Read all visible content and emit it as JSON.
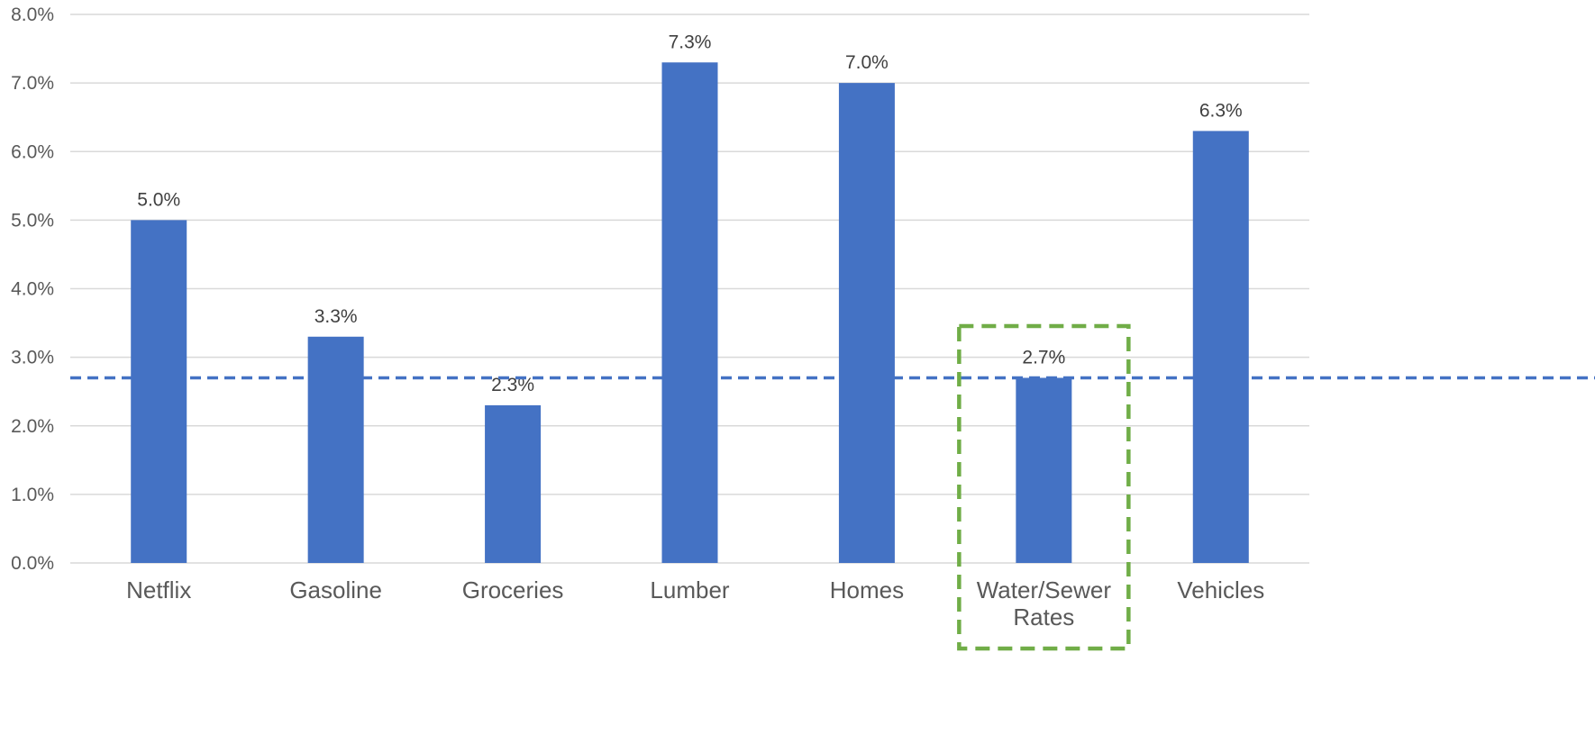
{
  "chart_data": {
    "type": "bar",
    "title": "",
    "xlabel": "",
    "ylabel": "",
    "categories": [
      "Netflix",
      "Gasoline",
      "Groceries",
      "Lumber",
      "Homes",
      "Water/Sewer Rates",
      "Vehicles"
    ],
    "category_label_lines": [
      [
        "Netflix"
      ],
      [
        "Gasoline"
      ],
      [
        "Groceries"
      ],
      [
        "Lumber"
      ],
      [
        "Homes"
      ],
      [
        "Water/Sewer",
        "Rates"
      ],
      [
        "Vehicles"
      ]
    ],
    "values": [
      5.0,
      3.3,
      2.3,
      7.3,
      7.0,
      2.7,
      6.3
    ],
    "data_labels": [
      "5.0%",
      "3.3%",
      "2.3%",
      "7.3%",
      "7.0%",
      "2.7%",
      "6.3%"
    ],
    "ylim": [
      0,
      8
    ],
    "yticks": [
      0,
      1,
      2,
      3,
      4,
      5,
      6,
      7,
      8
    ],
    "ytick_labels": [
      "0.0%",
      "1.0%",
      "2.0%",
      "3.0%",
      "4.0%",
      "5.0%",
      "6.0%",
      "7.0%",
      "8.0%"
    ],
    "grid": true,
    "legend": "none",
    "reference_line": {
      "value": 2.7,
      "style": "dashed"
    },
    "highlighted_category": "Water/Sewer Rates",
    "colors": {
      "bar": "#4472C4",
      "reference_line": "#4472C4",
      "highlight_box": "#70AD47",
      "grid": "#D9D9D9"
    }
  }
}
